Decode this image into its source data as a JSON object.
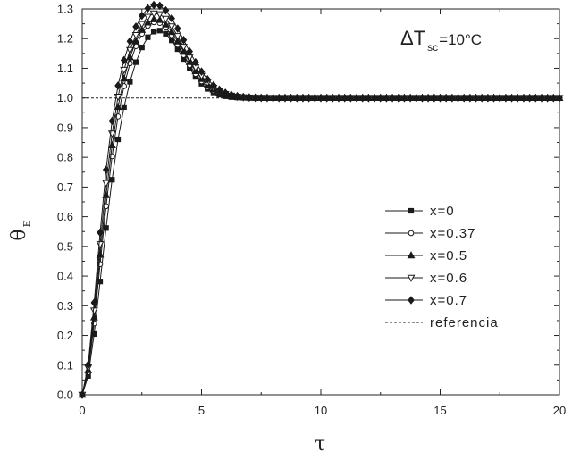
{
  "chart_data": {
    "type": "line",
    "title": "",
    "annotation": {
      "symbol": "ΔT",
      "subscript": "sc",
      "value": "=10°C"
    },
    "xlabel": "τ",
    "ylabel": {
      "symbol": "θ",
      "subscript": "E"
    },
    "xlim": [
      0,
      20
    ],
    "ylim": [
      0,
      1.3
    ],
    "xticks": [
      "0",
      "5",
      "10",
      "15",
      "20"
    ],
    "yticks": [
      "0.0",
      "0.1",
      "0.2",
      "0.3",
      "0.4",
      "0.5",
      "0.6",
      "0.7",
      "0.8",
      "0.9",
      "1.0",
      "1.1",
      "1.2",
      "1.3"
    ],
    "grid": false,
    "legend_position": "right",
    "reference": {
      "name": "referencia",
      "y": 1.0,
      "style": "dashed"
    },
    "x": [
      0,
      0.25,
      0.5,
      0.75,
      1,
      1.25,
      1.5,
      1.75,
      2,
      2.25,
      2.5,
      2.75,
      3,
      3.25,
      3.5,
      3.75,
      4,
      4.25,
      4.5,
      4.75,
      5,
      5.25,
      5.5,
      5.75,
      6,
      6.25,
      6.5,
      6.75,
      7,
      7.25,
      7.5,
      7.75,
      8,
      8.25,
      8.5,
      8.75,
      9,
      9.25,
      9.5,
      9.75,
      10,
      10.25,
      10.5,
      10.75,
      11,
      11.25,
      11.5,
      11.75,
      12,
      12.25,
      12.5,
      12.75,
      13,
      13.25,
      13.5,
      13.75,
      14,
      14.25,
      14.5,
      14.75,
      15,
      15.25,
      15.5,
      15.75,
      16,
      16.25,
      16.5,
      16.75,
      17,
      17.25,
      17.5,
      17.75,
      18,
      18.25,
      18.5,
      18.75,
      19,
      19.25,
      19.5,
      19.75,
      20
    ],
    "series": [
      {
        "name": "x=0",
        "marker": "square",
        "color": "#1a1a1a",
        "k": 1.15,
        "p": 2.5,
        "A": 0.24,
        "sigma": 1.5
      },
      {
        "name": "x=0.37",
        "marker": "circle-open",
        "color": "#1a1a1a",
        "k": 1.05,
        "p": 2.4,
        "A": 0.27,
        "sigma": 1.6
      },
      {
        "name": "x=0.5",
        "marker": "triangle-up",
        "color": "#1a1a1a",
        "k": 1.0,
        "p": 2.4,
        "A": 0.28,
        "sigma": 1.65
      },
      {
        "name": "x=0.6",
        "marker": "triangle-down-open",
        "color": "#1a1a1a",
        "k": 0.95,
        "p": 2.4,
        "A": 0.3,
        "sigma": 1.7
      },
      {
        "name": "x=0.7",
        "marker": "diamond",
        "color": "#1a1a1a",
        "k": 0.9,
        "p": 2.4,
        "A": 0.33,
        "sigma": 1.75
      }
    ]
  }
}
